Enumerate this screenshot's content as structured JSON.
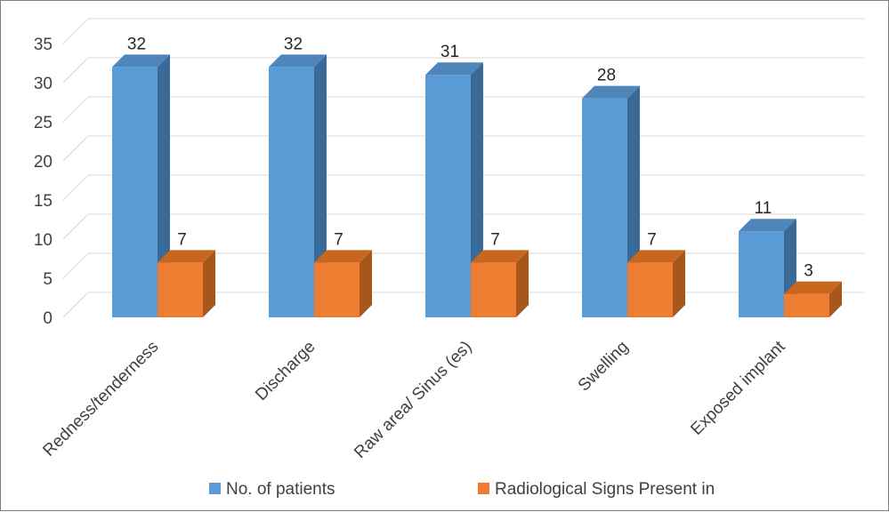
{
  "chart_data": {
    "type": "bar",
    "title": "",
    "xlabel": "",
    "ylabel": "",
    "categories": [
      "Redness/tenderness",
      "Discharge",
      "Raw area/ Sinus (es)",
      "Swelling",
      "Exposed implant"
    ],
    "series": [
      {
        "name": "No. of patients",
        "values": [
          32,
          32,
          31,
          28,
          11
        ]
      },
      {
        "name": "Radiological Signs Present in",
        "values": [
          7,
          7,
          7,
          7,
          3
        ]
      }
    ],
    "ylim": [
      0,
      35
    ],
    "yticks": [
      0,
      5,
      10,
      15,
      20,
      25,
      30,
      35
    ],
    "grid": true,
    "three_d": true,
    "legend_position": "bottom",
    "colors": {
      "series": [
        "#5B9BD5",
        "#ED7D31"
      ],
      "series_side": [
        "#3A6A98",
        "#A8561C"
      ],
      "series_top": [
        "#4E86BB",
        "#C8661E"
      ],
      "gridline": "#d9d9d9",
      "wall": "#d9d9d9"
    }
  }
}
